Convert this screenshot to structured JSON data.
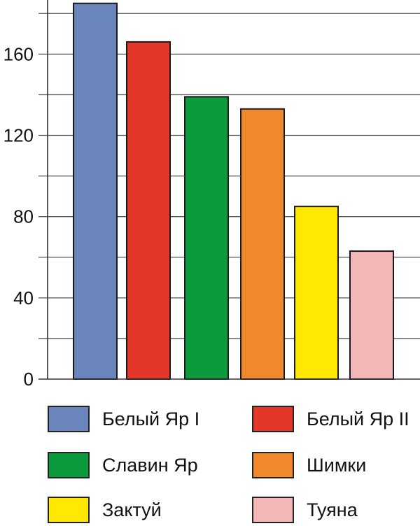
{
  "chart_data": {
    "type": "bar",
    "categories": [
      "Белый Яр I",
      "Белый Яр II",
      "Славин Яр",
      "Шимки",
      "Зактуй",
      "Туяна"
    ],
    "values": [
      185,
      166,
      139,
      133,
      85,
      63
    ],
    "colors": [
      "#6a85bb",
      "#e3372a",
      "#0d9a3c",
      "#f0892c",
      "#ffe900",
      "#f4b7b8"
    ],
    "title": "",
    "xlabel": "",
    "ylabel": "",
    "ylim": [
      0,
      185
    ],
    "yticks": [
      0,
      40,
      80,
      120,
      160
    ],
    "ytick_labels": [
      "0",
      "40",
      "80",
      "120",
      "160"
    ],
    "grid_step": 20,
    "grid": true,
    "legend_position": "bottom"
  }
}
